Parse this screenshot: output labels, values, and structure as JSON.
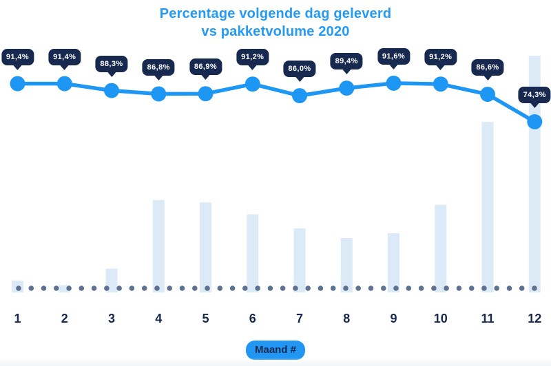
{
  "title": {
    "line1": "Percentage volgende dag geleverd",
    "line2": "vs pakketvolume 2020"
  },
  "x_axis": {
    "label": "Maand #"
  },
  "chart_data": {
    "type": "line",
    "title": "Percentage volgende dag geleverd vs pakketvolume 2020",
    "xlabel": "Maand #",
    "ylabel": "",
    "categories": [
      "1",
      "2",
      "3",
      "4",
      "5",
      "6",
      "7",
      "8",
      "9",
      "10",
      "11",
      "12"
    ],
    "series": [
      {
        "name": "Percentage volgende dag geleverd",
        "type": "line",
        "unit": "%",
        "values": [
          91.4,
          91.4,
          88.3,
          86.8,
          86.9,
          91.2,
          86.0,
          89.4,
          91.6,
          91.2,
          86.6,
          74.3
        ],
        "point_labels": [
          "91,4%",
          "91,4%",
          "88,3%",
          "86,8%",
          "86,9%",
          "91,2%",
          "86,0%",
          "89,4%",
          "91,6%",
          "91,2%",
          "86,6%",
          "74,3%"
        ]
      },
      {
        "name": "Pakketvolume 2020",
        "type": "bar",
        "unit": "relative height (no value axis shown)",
        "values": [
          5,
          3,
          10,
          39,
          38,
          33,
          27,
          23,
          25,
          37,
          72,
          100
        ]
      }
    ],
    "legend": "none",
    "grid": "dotted horizontal baseline only",
    "value_range_percent": [
      74.3,
      91.6
    ]
  },
  "colors": {
    "title_blue": "#2499F5",
    "line_blue": "#1E96F3",
    "pill_blue": "#2196F3",
    "navy": "#17294E",
    "bar_fill": "#DCEAF8",
    "baseline_dot": "#5D7191",
    "badge_text": "#FFFFFF",
    "background": "#FFFFFF"
  }
}
